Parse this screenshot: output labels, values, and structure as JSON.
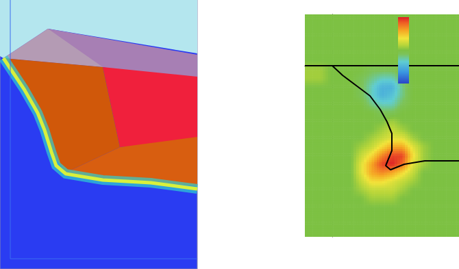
{
  "chart_data": {
    "type": "heatmap",
    "xlim": [
      -0.8,
      3.7
    ],
    "xticks": [
      0,
      1,
      2,
      3
    ],
    "ylim": [
      -10,
      3
    ],
    "yticks": [
      -9,
      -8,
      -7,
      -6,
      -5,
      -4,
      -3,
      -2,
      -1,
      0,
      1,
      2
    ],
    "tick_labels": false,
    "heatmap": {
      "x": [
        -0.65,
        -0.35,
        -0.05,
        0.25,
        0.55,
        0.85,
        1.15,
        1.45,
        1.75,
        2.05,
        2.35,
        2.65,
        2.95,
        3.25,
        3.55
      ],
      "y": [
        2.75,
        2.25,
        1.75,
        1.25,
        0.75,
        0.25,
        -0.25,
        -0.75,
        -1.25,
        -1.75,
        -2.25,
        -2.75,
        -3.25,
        -3.75,
        -4.25,
        -4.75,
        -5.25,
        -5.75,
        -6.25,
        -6.75,
        -7.25,
        -7.75,
        -8.25,
        -8.75,
        -9.25,
        -9.75
      ],
      "values": [
        [
          0,
          0,
          0,
          0,
          0,
          0,
          0,
          0,
          0,
          0,
          0,
          0,
          0,
          0,
          0
        ],
        [
          0,
          0,
          0,
          0,
          0,
          0,
          0,
          0,
          0,
          0,
          0,
          0,
          0,
          0,
          0
        ],
        [
          0,
          0,
          0,
          0,
          0,
          0,
          0,
          0,
          0,
          0,
          0,
          0,
          0,
          0,
          0
        ],
        [
          0,
          0,
          0,
          0,
          0,
          0,
          0,
          0,
          0,
          0,
          0,
          0,
          0,
          0,
          0
        ],
        [
          0,
          0,
          0,
          0,
          0,
          0,
          0,
          0,
          0,
          0,
          0,
          0,
          0,
          0,
          0
        ],
        [
          0,
          0,
          0,
          0,
          0,
          0,
          0,
          0,
          0,
          0,
          0,
          0,
          0,
          0,
          0
        ],
        [
          0.1,
          0.1,
          0,
          0,
          0,
          0,
          -0.1,
          -0.1,
          -0.1,
          0,
          0,
          0,
          0,
          0,
          0
        ],
        [
          0.1,
          0.1,
          0,
          0,
          0,
          -0.1,
          -0.2,
          -0.3,
          -0.3,
          -0.1,
          0,
          0,
          0,
          0,
          0
        ],
        [
          0,
          0,
          0,
          0,
          0,
          -0.1,
          -0.3,
          -0.5,
          -0.5,
          -0.2,
          0,
          0,
          0,
          0,
          0
        ],
        [
          0,
          0,
          0,
          0,
          0,
          -0.1,
          -0.3,
          -0.5,
          -0.4,
          -0.2,
          0,
          0,
          0,
          0,
          0
        ],
        [
          0,
          0,
          0,
          0,
          0,
          0,
          -0.2,
          -0.3,
          -0.3,
          -0.1,
          0,
          0,
          0,
          0,
          0
        ],
        [
          0,
          0,
          0,
          0,
          0,
          0,
          0,
          -0.1,
          -0.1,
          0,
          0,
          0,
          0,
          0,
          0
        ],
        [
          0,
          0,
          0,
          0,
          0,
          0,
          0,
          0,
          0.1,
          0,
          0,
          0,
          0,
          0,
          0
        ],
        [
          0,
          0,
          0,
          0,
          0,
          0,
          0,
          0.1,
          0.2,
          0.1,
          0,
          0,
          0,
          0,
          0
        ],
        [
          0,
          0,
          0,
          0,
          0,
          0,
          0.1,
          0.2,
          0.3,
          0.3,
          0.1,
          0,
          0,
          0,
          0
        ],
        [
          0,
          0,
          0,
          0,
          0,
          0.1,
          0.2,
          0.4,
          0.6,
          0.6,
          0.3,
          0.1,
          0,
          0,
          0
        ],
        [
          0,
          0,
          0,
          0,
          0,
          0.2,
          0.4,
          0.7,
          0.9,
          0.9,
          0.4,
          0.1,
          0,
          0,
          0
        ],
        [
          0,
          0,
          0,
          0,
          0,
          0.3,
          0.6,
          0.9,
          1,
          0.8,
          0.3,
          0.1,
          0,
          0,
          0
        ],
        [
          0,
          0,
          0,
          0,
          0,
          0.3,
          0.6,
          0.7,
          0.6,
          0.4,
          0.2,
          0,
          0,
          0,
          0
        ],
        [
          0,
          0,
          0,
          0,
          0,
          0.2,
          0.4,
          0.4,
          0.3,
          0.2,
          0.1,
          0,
          0,
          0,
          0
        ],
        [
          0,
          0,
          0,
          0,
          0,
          0.1,
          0.2,
          0.2,
          0.2,
          0.1,
          0,
          0,
          0,
          0,
          0
        ],
        [
          0,
          0,
          0,
          0,
          0,
          0,
          0.1,
          0.1,
          0.1,
          0,
          0,
          0,
          0,
          0,
          0
        ],
        [
          0,
          0,
          0,
          0,
          0,
          0,
          0,
          0,
          0,
          0,
          0,
          0,
          0,
          0,
          0
        ],
        [
          0,
          0,
          0,
          0,
          0,
          0,
          0,
          0,
          0,
          0,
          0,
          0,
          0,
          0,
          0
        ],
        [
          0,
          0,
          0,
          0,
          0,
          0,
          0,
          0,
          0,
          0,
          0,
          0,
          0,
          0,
          0
        ],
        [
          0,
          0,
          0,
          0,
          0,
          0,
          0,
          0,
          0,
          0,
          0,
          0,
          0,
          0,
          0
        ]
      ]
    },
    "colorbar": {
      "range": [
        -1,
        1
      ]
    },
    "series": [
      {
        "type": "line",
        "color": "#000000",
        "x": [
          0,
          0.3,
          0.7,
          1.1,
          1.4,
          1.6,
          1.74,
          1.74,
          1.56,
          1.7,
          2.1,
          2.7,
          3.7
        ],
        "values": [
          0,
          -0.56,
          -1.16,
          -1.76,
          -2.56,
          -3.28,
          -3.96,
          -4.96,
          -5.84,
          -6.08,
          -5.76,
          -5.56,
          -5.56
        ]
      },
      {
        "type": "line",
        "color": "#000000",
        "x": [
          -0.8,
          3.7
        ],
        "values": [
          0,
          0
        ]
      }
    ]
  }
}
